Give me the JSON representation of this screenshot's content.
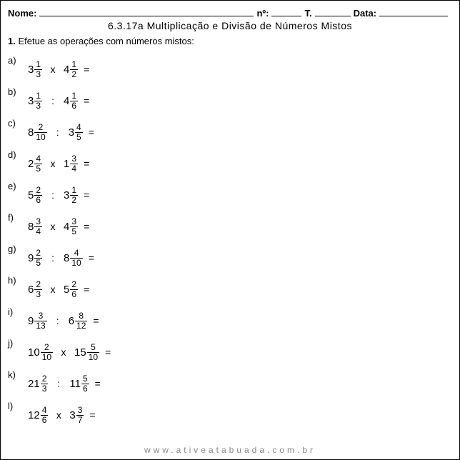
{
  "header": {
    "nome_label": "Nome:",
    "no_label": "nº:",
    "turma_label": "T.",
    "data_label": "Data:"
  },
  "title": "6.3.17a  Multiplicação e Divisão de Números Mistos",
  "instruction_num": "1.",
  "instruction_text": "Efetue as operações com números mistos:",
  "problems": [
    {
      "label": "a)",
      "w1": "3",
      "n1": "1",
      "d1": "3",
      "op": "x",
      "w2": "4",
      "n2": "1",
      "d2": "2"
    },
    {
      "label": "b)",
      "w1": "3",
      "n1": "1",
      "d1": "3",
      "op": ":",
      "w2": "4",
      "n2": "1",
      "d2": "6"
    },
    {
      "label": "c)",
      "w1": "8",
      "n1": "2",
      "d1": "10",
      "op": ":",
      "w2": "3",
      "n2": "4",
      "d2": "5"
    },
    {
      "label": "d)",
      "w1": "2",
      "n1": "4",
      "d1": "5",
      "op": "x",
      "w2": "1",
      "n2": "3",
      "d2": "4"
    },
    {
      "label": "e)",
      "w1": "5",
      "n1": "2",
      "d1": "6",
      "op": ":",
      "w2": "3",
      "n2": "1",
      "d2": "2"
    },
    {
      "label": "f)",
      "w1": "8",
      "n1": "3",
      "d1": "4",
      "op": "x",
      "w2": "4",
      "n2": "3",
      "d2": "5"
    },
    {
      "label": "g)",
      "w1": "9",
      "n1": "2",
      "d1": "5",
      "op": ":",
      "w2": "8",
      "n2": "4",
      "d2": "10"
    },
    {
      "label": "h)",
      "w1": "6",
      "n1": "2",
      "d1": "3",
      "op": "x",
      "w2": "5",
      "n2": "2",
      "d2": "6"
    },
    {
      "label": "i)",
      "w1": "9",
      "n1": "3",
      "d1": "13",
      "op": ":",
      "w2": "6",
      "n2": "8",
      "d2": "12"
    },
    {
      "label": "j)",
      "w1": "10",
      "n1": "2",
      "d1": "10",
      "op": "x",
      "w2": "15",
      "n2": "5",
      "d2": "10"
    },
    {
      "label": "k)",
      "w1": "21",
      "n1": "2",
      "d1": "3",
      "op": ":",
      "w2": "11",
      "n2": "5",
      "d2": "6"
    },
    {
      "label": "l)",
      "w1": "12",
      "n1": "4",
      "d1": "6",
      "op": "x",
      "w2": "3",
      "n2": "3",
      "d2": "7"
    }
  ],
  "equals": "=",
  "footer": "www.ativeatabuada.com.br",
  "underline_widths": {
    "nome": 300,
    "no": 42,
    "turma": 50,
    "data": 96
  }
}
